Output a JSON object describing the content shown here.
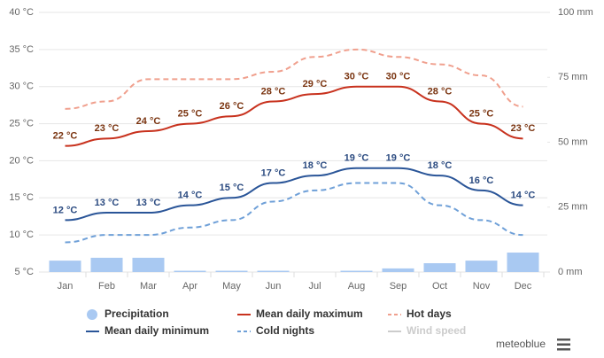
{
  "chart_data": {
    "type": "line",
    "brand": "meteoblue",
    "categories": [
      "Jan",
      "Feb",
      "Mar",
      "Apr",
      "May",
      "Jun",
      "Jul",
      "Aug",
      "Sep",
      "Oct",
      "Nov",
      "Dec"
    ],
    "ylim": [
      5,
      40
    ],
    "yticks": [
      {
        "value": 5,
        "label": "5 °C"
      },
      {
        "value": 10,
        "label": "10 °C"
      },
      {
        "value": 15,
        "label": "15 °C"
      },
      {
        "value": 20,
        "label": "20 °C"
      },
      {
        "value": 25,
        "label": "25 °C"
      },
      {
        "value": 30,
        "label": "30 °C"
      },
      {
        "value": 35,
        "label": "35 °C"
      },
      {
        "value": 40,
        "label": "40 °C"
      }
    ],
    "y2lim": [
      0,
      100
    ],
    "y2ticks": [
      {
        "value": 0,
        "label": "0 mm"
      },
      {
        "value": 25,
        "label": "25 mm"
      },
      {
        "value": 50,
        "label": "50 mm"
      },
      {
        "value": 75,
        "label": "75 mm"
      },
      {
        "value": 100,
        "label": "100 mm"
      }
    ],
    "grid": true,
    "series": [
      {
        "name": "Precipitation",
        "type": "bar",
        "axis": "y2",
        "color": "#a9c9f2",
        "values": [
          4.4,
          5.5,
          5.5,
          0.5,
          0.5,
          0.5,
          0,
          0.5,
          1.4,
          3.4,
          4.4,
          7.5
        ]
      },
      {
        "name": "Mean daily maximum",
        "type": "line",
        "color": "#c8321e",
        "label_color": "#7a3410",
        "values": [
          22,
          23,
          24,
          25,
          26,
          28,
          29,
          30,
          30,
          28,
          25,
          23
        ],
        "value_labels": [
          "22 °C",
          "23 °C",
          "24 °C",
          "25 °C",
          "26 °C",
          "28 °C",
          "29 °C",
          "30 °C",
          "30 °C",
          "28 °C",
          "25 °C",
          "23 °C"
        ]
      },
      {
        "name": "Hot days",
        "type": "line",
        "dashed": true,
        "color": "#f0a08e",
        "values": [
          27,
          28,
          31,
          31,
          31,
          32,
          34,
          35,
          34,
          33,
          31.5,
          27.3
        ]
      },
      {
        "name": "Mean daily minimum",
        "type": "line",
        "color": "#2a5598",
        "label_color": "#2a4a80",
        "values": [
          12,
          13,
          13,
          14,
          15,
          17,
          18,
          19,
          19,
          18,
          16,
          14
        ],
        "value_labels": [
          "12 °C",
          "13 °C",
          "13 °C",
          "14 °C",
          "15 °C",
          "17 °C",
          "18 °C",
          "19 °C",
          "19 °C",
          "18 °C",
          "16 °C",
          "14 °C"
        ]
      },
      {
        "name": "Cold nights",
        "type": "line",
        "dashed": true,
        "color": "#6fa0d8",
        "values": [
          9,
          10,
          10,
          11,
          12,
          14.5,
          16,
          17,
          17,
          14,
          12,
          10
        ]
      },
      {
        "name": "Wind speed",
        "type": "line",
        "color": "#cccccc",
        "hidden": true
      }
    ]
  }
}
